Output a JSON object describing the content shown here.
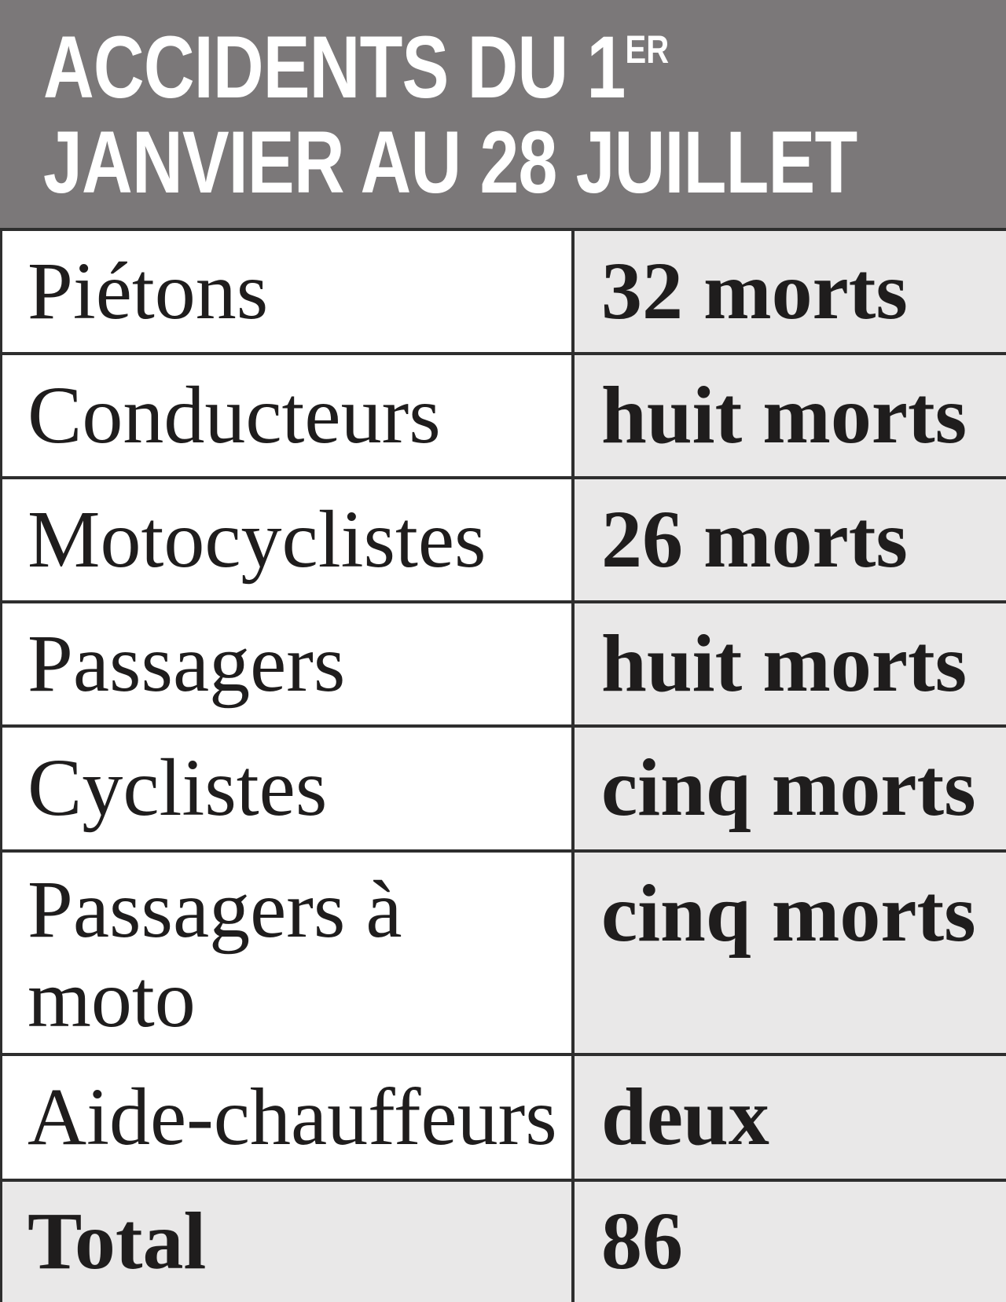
{
  "header": {
    "title_line1": "ACCIDENTS DU 1",
    "title_superscript": "ER",
    "title_line2": "JANVIER AU 28 JUILLET",
    "bg_color": "#7b7879",
    "text_color": "#ffffff"
  },
  "table": {
    "rows": [
      {
        "label": "Piétons",
        "value": "32 morts"
      },
      {
        "label": "Conducteurs",
        "value": "huit morts"
      },
      {
        "label": "Motocyclistes",
        "value": "26 morts"
      },
      {
        "label": "Passagers",
        "value": "huit morts"
      },
      {
        "label": "Cyclistes",
        "value": "cinq morts"
      },
      {
        "label": "Passagers à moto",
        "value": "cinq morts"
      },
      {
        "label": "Aide-chauffeurs",
        "value": "deux"
      },
      {
        "label": "Total",
        "value": "86"
      }
    ],
    "colors": {
      "label_cell_bg": "#ffffff",
      "value_cell_bg": "#e9e8e8",
      "total_row_bg": "#e9e8e8",
      "border": "#2e2e2e",
      "text": "#1f1d1d"
    }
  },
  "chart_data": {
    "type": "table",
    "title": "ACCIDENTS DU 1ER JANVIER AU 28 JUILLET",
    "categories": [
      "Piétons",
      "Conducteurs",
      "Motocyclistes",
      "Passagers",
      "Cyclistes",
      "Passagers à moto",
      "Aide-chauffeurs"
    ],
    "values_text": [
      "32 morts",
      "huit morts",
      "26 morts",
      "huit morts",
      "cinq morts",
      "cinq morts",
      "deux"
    ],
    "values_numeric": [
      32,
      8,
      26,
      8,
      5,
      5,
      2
    ],
    "total_label": "Total",
    "total_value": 86,
    "layout": "two-column table, labels left on white, values right on light grey, grey title banner on top"
  }
}
